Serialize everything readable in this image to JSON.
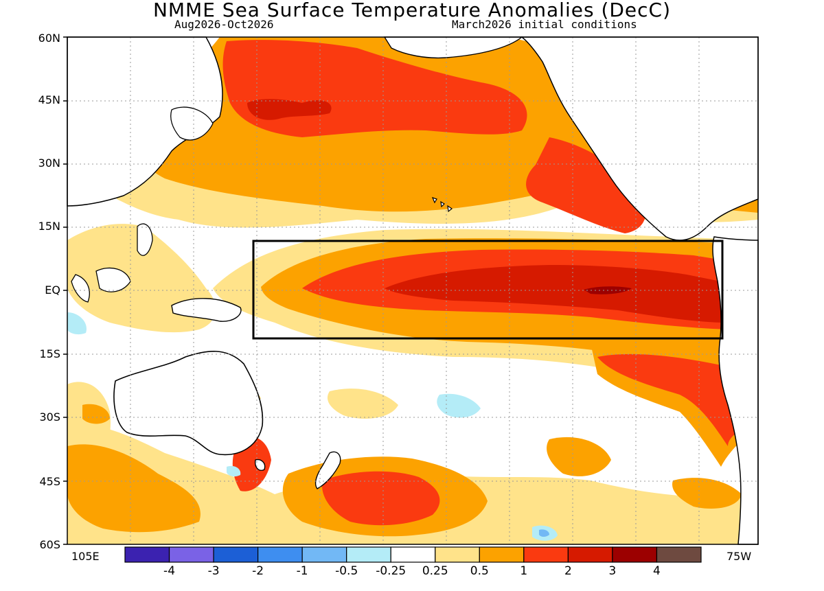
{
  "header": {
    "title": "NMME Sea Surface Temperature Anomalies (DecC)",
    "subtitle_left": "Aug2026-Oct2026",
    "subtitle_right": "March2026 initial conditions"
  },
  "axes": {
    "lat_labels": [
      "60N",
      "45N",
      "30N",
      "15N",
      "EQ",
      "15S",
      "30S",
      "45S",
      "60S"
    ],
    "lon_left": "105E",
    "lon_right": "75W"
  },
  "colorbar": {
    "colors": [
      "#3b22b0",
      "#7a62e6",
      "#1c5fd6",
      "#3e8ef0",
      "#72b8f5",
      "#b4ecf7",
      "#ffffff",
      "#ffe38a",
      "#fca200",
      "#fa3a10",
      "#d61a00",
      "#9c0000",
      "#6e4a40"
    ],
    "labels": [
      "-4",
      "-3",
      "-2",
      "-1",
      "-0.5",
      "-0.25",
      "0.25",
      "0.5",
      "1",
      "2",
      "3",
      "4"
    ]
  },
  "map": {
    "box_region": "Niño 3.4-like box outline",
    "ocean_color": "#ffffff",
    "land_outline_color": "#000000"
  }
}
